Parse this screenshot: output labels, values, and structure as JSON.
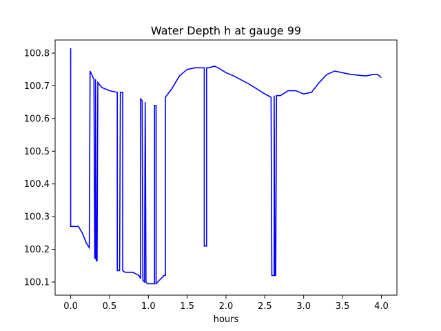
{
  "chart_data": {
    "type": "line",
    "title": "Water Depth h at gauge 99",
    "xlabel": "hours",
    "ylabel": "",
    "xlim": [
      -0.2,
      4.2
    ],
    "ylim": [
      100.06,
      100.84
    ],
    "xticks": [
      0.0,
      0.5,
      1.0,
      1.5,
      2.0,
      2.5,
      3.0,
      3.5,
      4.0
    ],
    "xtick_labels": [
      "0.0",
      "0.5",
      "1.0",
      "1.5",
      "2.0",
      "2.5",
      "3.0",
      "3.5",
      "4.0"
    ],
    "yticks": [
      100.1,
      100.2,
      100.3,
      100.4,
      100.5,
      100.6,
      100.7,
      100.8
    ],
    "ytick_labels": [
      "100.1",
      "100.2",
      "100.3",
      "100.4",
      "100.5",
      "100.6",
      "100.7",
      "100.8"
    ],
    "grid": false,
    "legend": "none",
    "series": [
      {
        "color": "#0000ff",
        "x": [
          0.0,
          0.0,
          0.02,
          0.1,
          0.15,
          0.2,
          0.24,
          0.25,
          0.3,
          0.31,
          0.32,
          0.32,
          0.33,
          0.34,
          0.35,
          0.4,
          0.5,
          0.6,
          0.6,
          0.63,
          0.64,
          0.64,
          0.67,
          0.67,
          0.7,
          0.8,
          0.88,
          0.9,
          0.9,
          0.92,
          0.93,
          0.95,
          0.96,
          0.97,
          0.99,
          1.0,
          1.05,
          1.08,
          1.08,
          1.1,
          1.1,
          1.12,
          1.2,
          1.22,
          1.22,
          1.3,
          1.4,
          1.5,
          1.6,
          1.72,
          1.72,
          1.74,
          1.75,
          1.75,
          1.78,
          1.85,
          1.9,
          2.0,
          2.1,
          2.3,
          2.5,
          2.58,
          2.59,
          2.62,
          2.62,
          2.63,
          2.64,
          2.65,
          2.65,
          2.7,
          2.8,
          2.9,
          3.0,
          3.1,
          3.2,
          3.3,
          3.4,
          3.5,
          3.6,
          3.8,
          3.9,
          3.95,
          4.0
        ],
        "y": [
          100.815,
          100.27,
          100.27,
          100.27,
          100.25,
          100.22,
          100.205,
          100.745,
          100.72,
          100.175,
          100.17,
          100.72,
          100.165,
          100.165,
          100.71,
          100.695,
          100.685,
          100.68,
          100.135,
          100.135,
          100.68,
          100.68,
          100.68,
          100.135,
          100.13,
          100.13,
          100.12,
          100.11,
          100.66,
          100.655,
          100.105,
          100.1,
          100.65,
          100.1,
          100.095,
          100.095,
          100.095,
          100.095,
          100.64,
          100.64,
          100.095,
          100.1,
          100.12,
          100.12,
          100.665,
          100.69,
          100.73,
          100.75,
          100.755,
          100.755,
          100.21,
          100.21,
          100.21,
          100.755,
          100.755,
          100.76,
          100.755,
          100.74,
          100.73,
          100.705,
          100.675,
          100.665,
          100.12,
          100.12,
          100.67,
          100.12,
          100.12,
          100.67,
          100.67,
          100.67,
          100.685,
          100.685,
          100.675,
          100.68,
          100.71,
          100.735,
          100.745,
          100.74,
          100.735,
          100.73,
          100.735,
          100.735,
          100.725
        ]
      }
    ]
  }
}
